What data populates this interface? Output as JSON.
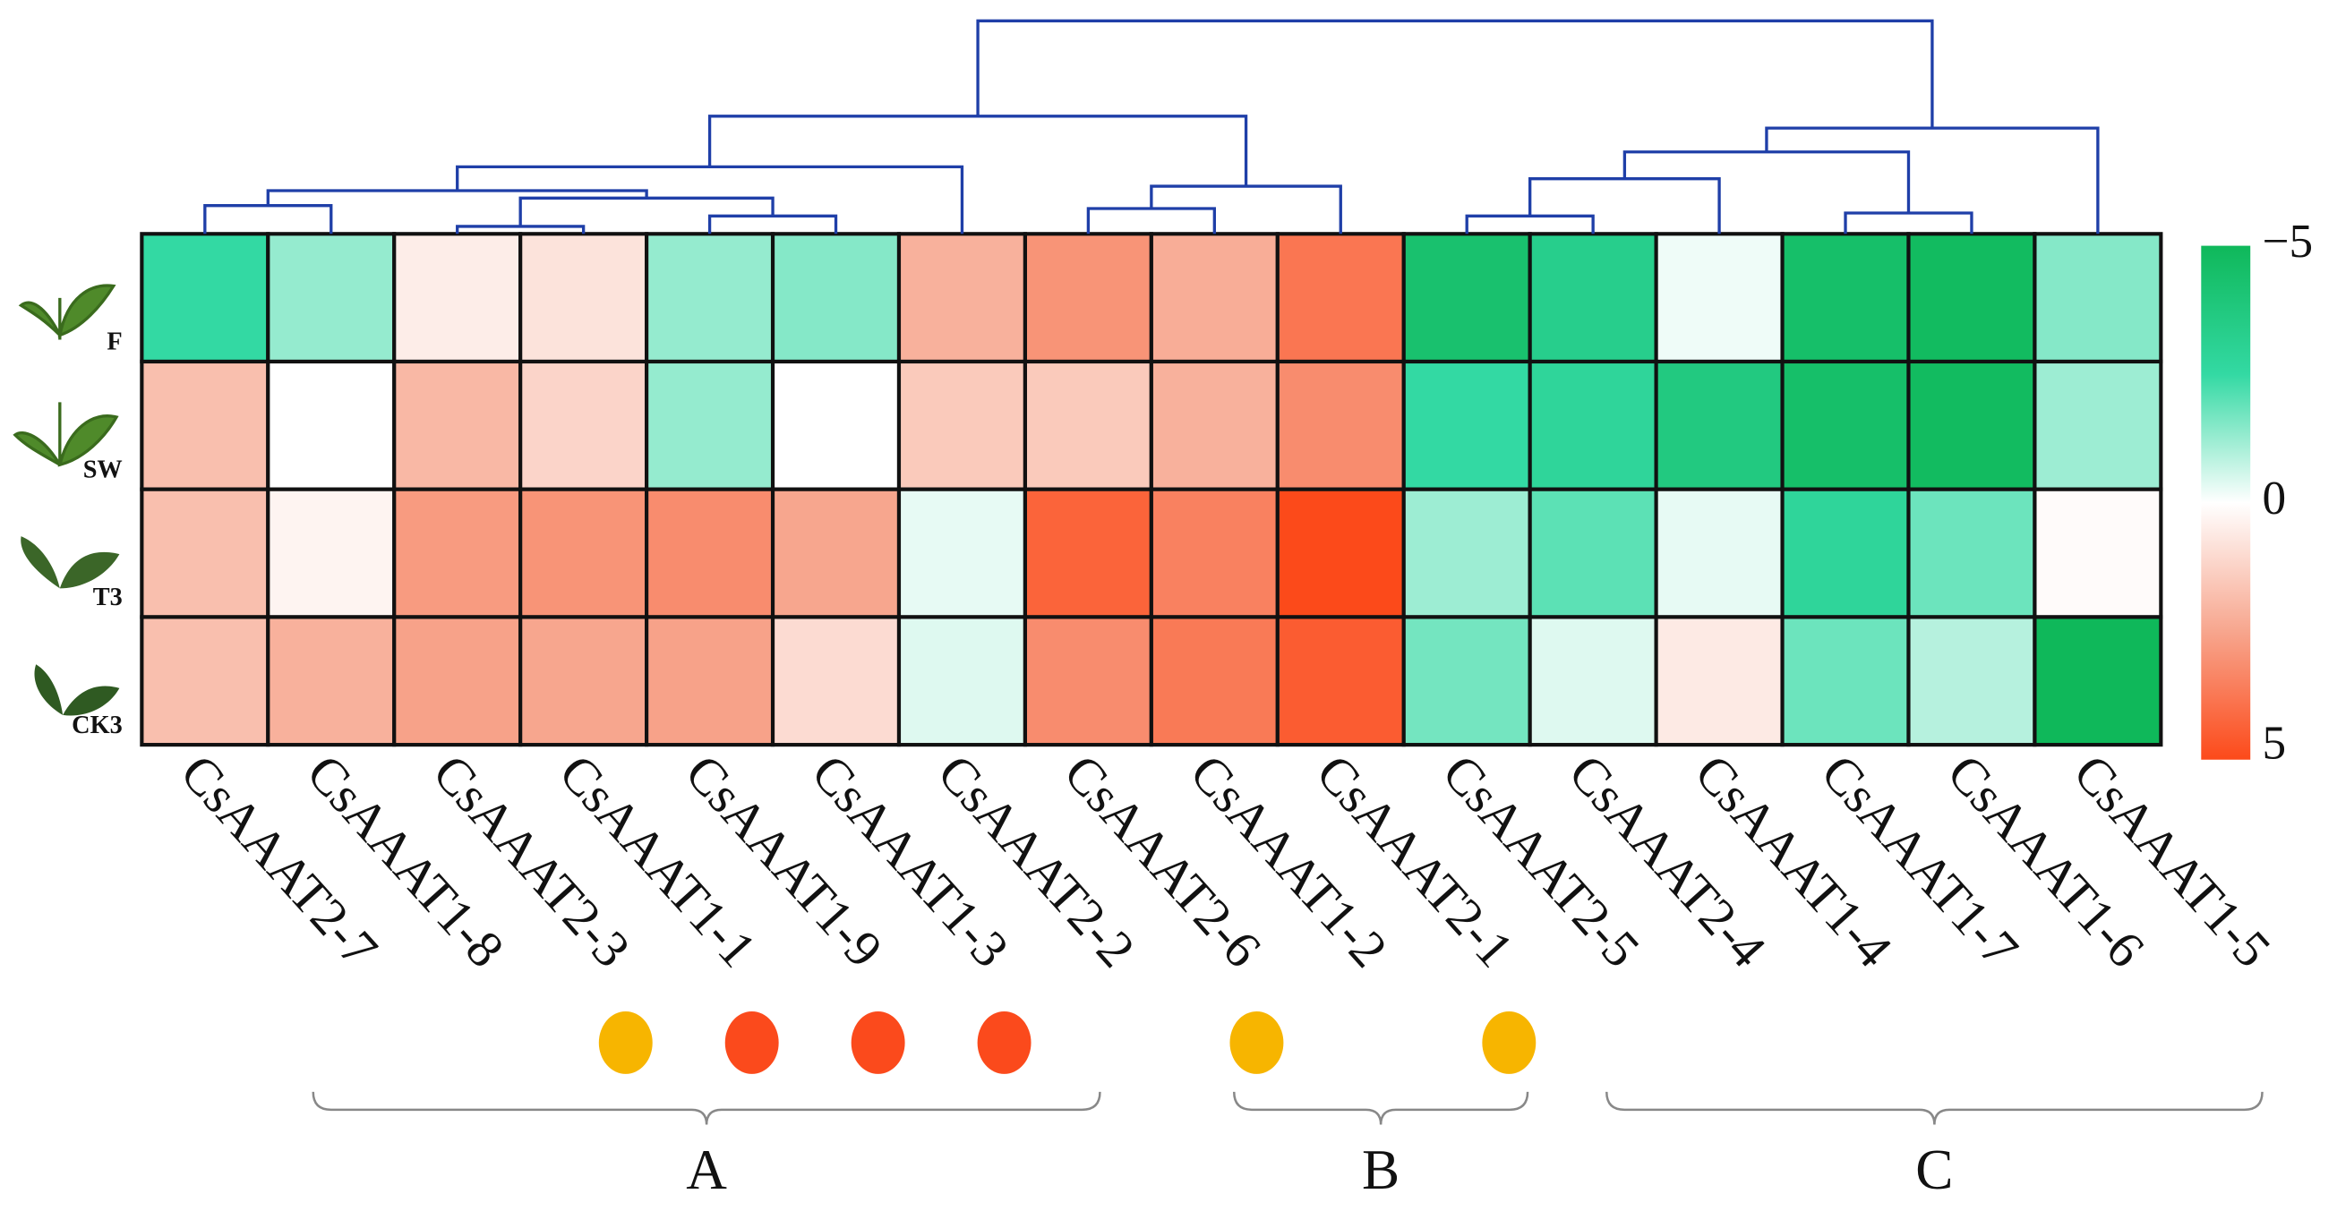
{
  "chart_data": {
    "type": "heatmap",
    "rows": [
      "F",
      "SW",
      "T3",
      "CK3"
    ],
    "columns": [
      "CsAAAT2-7",
      "CsAAAT1-8",
      "CsAAAT2-3",
      "CsAAAT1-1",
      "CsAAAT1-9",
      "CsAAAT1-3",
      "CsAAAT2-2",
      "CsAAAT2-6",
      "CsAAAT1-2",
      "CsAAAT2-1",
      "CsAAAT2-5",
      "CsAAAT2-4",
      "CsAAAT1-4",
      "CsAAAT1-7",
      "CsAAAT1-6",
      "CsAAAT1-5"
    ],
    "values": [
      [
        -2.5,
        -1.3,
        0.5,
        0.8,
        -1.3,
        -1.5,
        2.2,
        3.0,
        2.3,
        3.8,
        -4.3,
        -3.3,
        -0.2,
        -4.5,
        -4.8,
        -1.5
      ],
      [
        1.8,
        0,
        2.0,
        1.2,
        -1.3,
        0,
        1.5,
        1.5,
        2.2,
        3.2,
        -2.5,
        -2.8,
        -3.7,
        -4.5,
        -4.8,
        -1.2
      ],
      [
        1.8,
        0.3,
        2.8,
        3.0,
        3.2,
        2.5,
        -0.3,
        4.3,
        3.5,
        5,
        -1.2,
        -2.0,
        -0.3,
        -2.8,
        -1.8,
        0.1
      ],
      [
        1.8,
        2.2,
        2.6,
        2.5,
        2.6,
        1.0,
        -0.4,
        3.2,
        3.7,
        4.5,
        -1.7,
        -0.4,
        0.6,
        -1.8,
        -0.9,
        -5
      ]
    ],
    "clim": [
      -5,
      5
    ],
    "cticks": [
      {
        "value": -5,
        "label": "−5"
      },
      0,
      5
    ],
    "colormap": [
      {
        "value": -5,
        "color": "#0fb85a"
      },
      {
        "value": -2.5,
        "color": "#33d9a3"
      },
      {
        "value": 0,
        "color": "#ffffff"
      },
      {
        "value": 2.5,
        "color": "#f7a68e"
      },
      {
        "value": 5,
        "color": "#fc4a1a"
      }
    ],
    "marker_colors": [
      null,
      null,
      "#f7b500",
      "#fb4a1c",
      "#fb4a1c",
      "#fb4a1c",
      null,
      "#f7b500",
      null,
      "#f7b500",
      null,
      null,
      null,
      null,
      null,
      null
    ],
    "groups": [
      "A",
      "B",
      "C"
    ]
  }
}
